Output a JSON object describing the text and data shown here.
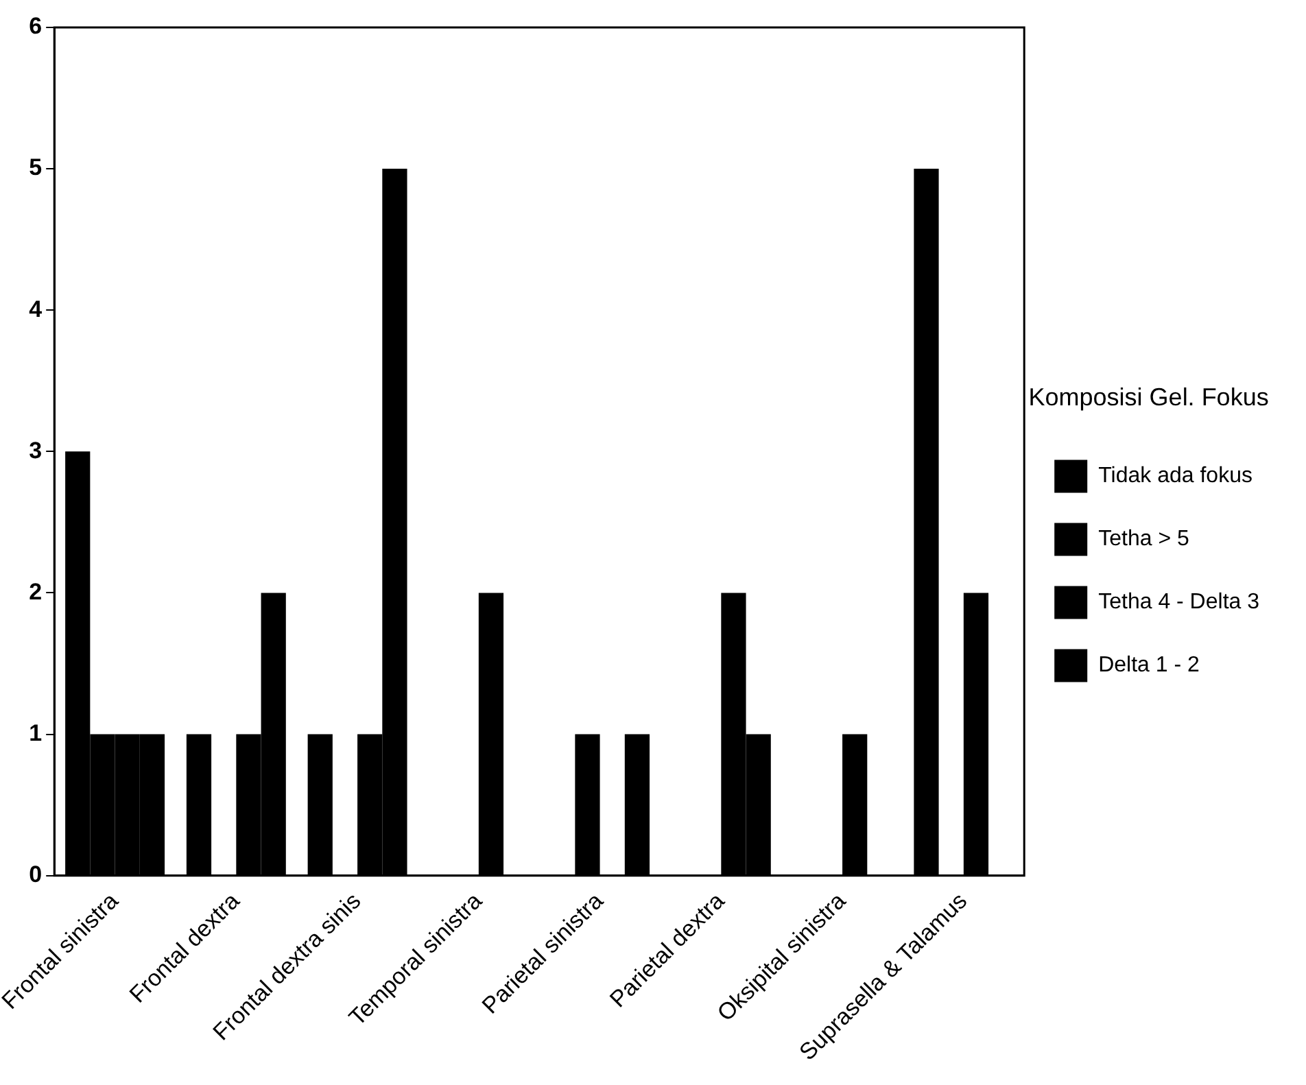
{
  "chart_data": {
    "type": "bar",
    "legend_title": "Komposisi Gel. Fokus",
    "categories": [
      "Frontal sinistra",
      "Frontal dextra",
      "Frontal dextra sinis",
      "Temporal sinistra",
      "Parietal sinistra",
      "Parietal dextra",
      "Oksipital sinistra",
      "Suprasella & Talamus"
    ],
    "series": [
      {
        "name": "Tidak ada fokus",
        "color": "#000000",
        "values": [
          3,
          1,
          1,
          0,
          0,
          0,
          0,
          5
        ]
      },
      {
        "name": "Tetha > 5",
        "color": "#000000",
        "values": [
          1,
          0,
          0,
          0,
          1,
          0,
          0,
          0
        ]
      },
      {
        "name": "Tetha 4 - Delta 3",
        "color": "#000000",
        "values": [
          1,
          1,
          1,
          2,
          0,
          2,
          1,
          2
        ]
      },
      {
        "name": "Delta 1 - 2",
        "color": "#000000",
        "values": [
          1,
          2,
          5,
          0,
          1,
          1,
          0,
          0
        ]
      }
    ],
    "ylim": [
      0,
      6
    ],
    "yticks": [
      0,
      1,
      2,
      3,
      4,
      5,
      6
    ],
    "grid": false,
    "legend": "right"
  }
}
